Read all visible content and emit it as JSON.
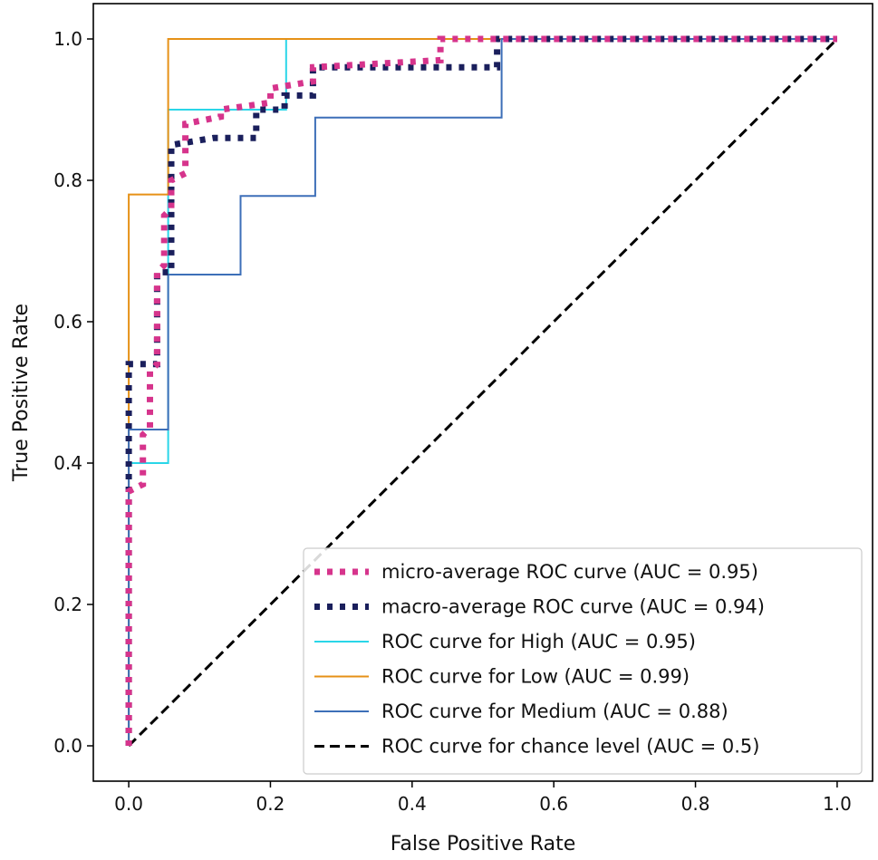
{
  "chart_data": {
    "type": "line",
    "title": "",
    "xlabel": "False Positive Rate",
    "ylabel": "True Positive Rate",
    "xlim": [
      -0.05,
      1.05
    ],
    "ylim": [
      -0.05,
      1.05
    ],
    "xticks": [
      {
        "value": 0.0,
        "label": "0.0"
      },
      {
        "value": 0.2,
        "label": "0.2"
      },
      {
        "value": 0.4,
        "label": "0.4"
      },
      {
        "value": 0.6,
        "label": "0.6"
      },
      {
        "value": 0.8,
        "label": "0.8"
      },
      {
        "value": 1.0,
        "label": "1.0"
      }
    ],
    "yticks": [
      {
        "value": 0.0,
        "label": "0.0"
      },
      {
        "value": 0.2,
        "label": "0.2"
      },
      {
        "value": 0.4,
        "label": "0.4"
      },
      {
        "value": 0.6,
        "label": "0.6"
      },
      {
        "value": 0.8,
        "label": "0.8"
      },
      {
        "value": 1.0,
        "label": "1.0"
      }
    ],
    "grid": false,
    "legend_position": "lower-right",
    "series": [
      {
        "name": "micro-average ROC curve (AUC = 0.95)",
        "color": "#d6348c",
        "style": "dotted",
        "x": [
          0.0,
          0.0,
          0.02,
          0.02,
          0.03,
          0.03,
          0.04,
          0.04,
          0.05,
          0.05,
          0.06,
          0.06,
          0.08,
          0.08,
          0.13,
          0.13,
          0.2,
          0.2,
          0.26,
          0.26,
          0.44,
          0.44,
          1.0
        ],
        "y": [
          0.0,
          0.36,
          0.37,
          0.44,
          0.45,
          0.53,
          0.54,
          0.67,
          0.68,
          0.75,
          0.76,
          0.8,
          0.81,
          0.88,
          0.89,
          0.9,
          0.91,
          0.93,
          0.94,
          0.96,
          0.97,
          1.0,
          1.0
        ]
      },
      {
        "name": "macro-average ROC curve (AUC = 0.94)",
        "color": "#1a1f5c",
        "style": "dotted",
        "x": [
          0.0,
          0.0,
          0.04,
          0.04,
          0.06,
          0.06,
          0.12,
          0.12,
          0.18,
          0.18,
          0.22,
          0.22,
          0.26,
          0.26,
          0.52,
          0.52,
          1.0
        ],
        "y": [
          0.0,
          0.54,
          0.54,
          0.67,
          0.67,
          0.85,
          0.86,
          0.86,
          0.86,
          0.9,
          0.9,
          0.92,
          0.92,
          0.96,
          0.96,
          1.0,
          1.0
        ]
      },
      {
        "name": "ROC curve for High (AUC = 0.95)",
        "color": "#2ad6e8",
        "style": "solid",
        "x": [
          0.0,
          0.0,
          0.0,
          0.0556,
          0.0556,
          0.0556,
          0.2222,
          0.2222,
          0.2222,
          1.0
        ],
        "y": [
          0.0,
          0.0,
          0.4,
          0.4,
          0.4,
          0.9,
          0.9,
          0.9,
          1.0,
          1.0
        ]
      },
      {
        "name": "ROC curve for Low (AUC = 0.99)",
        "color": "#e69117",
        "style": "solid",
        "x": [
          0.0,
          0.0,
          0.0,
          0.0556,
          0.0556,
          0.0556,
          1.0
        ],
        "y": [
          0.0,
          0.0,
          0.78,
          0.78,
          0.78,
          1.0,
          1.0
        ]
      },
      {
        "name": "ROC curve for Medium (AUC = 0.88)",
        "color": "#3d6fb8",
        "style": "solid",
        "x": [
          0.0,
          0.0,
          0.0,
          0.0556,
          0.0556,
          0.1579,
          0.1579,
          0.2632,
          0.2632,
          0.5263,
          0.5263,
          1.0
        ],
        "y": [
          0.0,
          0.0,
          0.4474,
          0.4474,
          0.6667,
          0.6667,
          0.7778,
          0.7778,
          0.8889,
          0.8889,
          1.0,
          1.0
        ]
      },
      {
        "name": "ROC curve for chance level (AUC = 0.5)",
        "color": "#000000",
        "style": "dashed",
        "x": [
          0.0,
          1.0
        ],
        "y": [
          0.0,
          1.0
        ]
      }
    ]
  }
}
